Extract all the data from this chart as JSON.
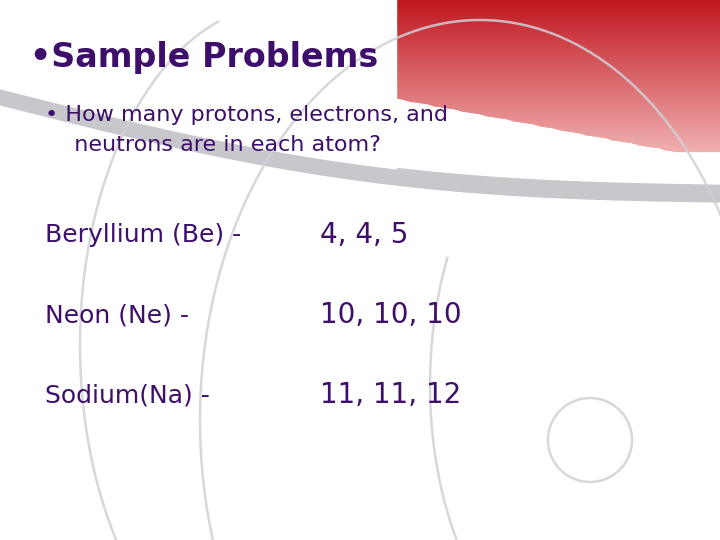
{
  "title": "•Sample Problems",
  "subtitle_line1": "• How many protons, electrons, and",
  "subtitle_line2": "  neutrons are in each atom?",
  "rows": [
    {
      "label": "Beryllium (Be) -",
      "value": "4, 4, 5"
    },
    {
      "label": "Neon (Ne) -",
      "value": "10, 10, 10"
    },
    {
      "label": "Sodium(Na) -",
      "value": "11, 11, 12"
    }
  ],
  "bg_color": "#ffffff",
  "text_color": "#3d0f6b",
  "title_fontsize": 24,
  "subtitle_fontsize": 16,
  "row_label_fontsize": 18,
  "row_value_fontsize": 20,
  "red_dark": "#c01820",
  "red_light": "#f0b0b0",
  "arc_color": "#d0d0d8",
  "separator_color": "#c8c8cc"
}
